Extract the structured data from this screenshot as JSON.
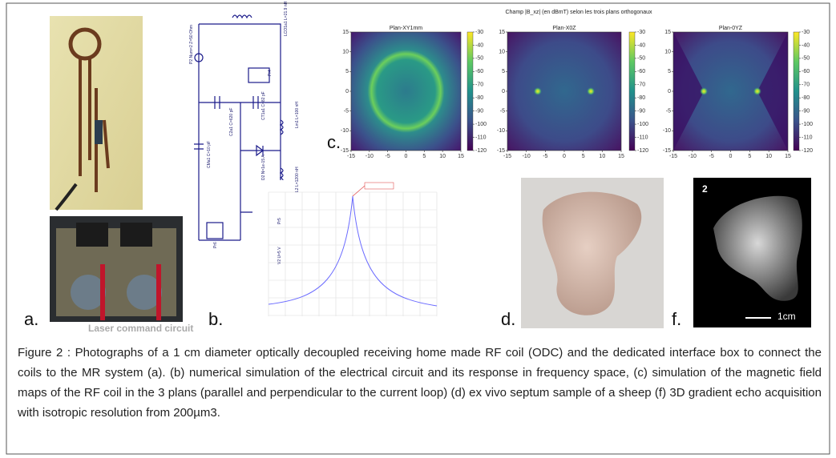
{
  "figure": {
    "panel_labels": {
      "a": "a.",
      "b": "b.",
      "c": "c.",
      "d": "d.",
      "f": "f."
    },
    "photo_a_caption": "Laser command circuit",
    "circuit_labels": [
      "LCO1a1 L=21.9 nH",
      "P2 Num=2 Z=50 Ohm",
      "Pr4",
      "C2a1 C=620 pF",
      "CT1a1 C=82 pF",
      "CMa1 C=10 pF",
      "Lm1 L=100 nH",
      "D2 N=1e-15 A",
      "L2 L=1200 nH",
      "Pr6",
      "Pr5",
      "V2 U=5 V"
    ],
    "field_maps": {
      "title": "Champ |B_xz| (en dBmT) selon les trois plans orthogonaux",
      "plots": [
        "Plan-XY1mm",
        "Plan-X0Z",
        "Plan-0YZ"
      ],
      "axis_ticks": [
        -15,
        -10,
        -5,
        0,
        5,
        10,
        15
      ],
      "colorbar_ticks": [
        -30,
        -40,
        -50,
        -60,
        -70,
        -80,
        -90,
        -100,
        -110,
        -120
      ]
    },
    "mri": {
      "slice": "2",
      "scale_bar": "1cm"
    }
  },
  "caption": "Figure 2 :  Photographs of a 1 cm diameter optically decoupled receiving home made RF coil (ODC) and the dedicated interface box to connect the coils to the MR system (a). (b) numerical simulation of the electrical circuit and its response in frequency space, (c) simulation of the magnetic field maps of the RF coil in the 3 plans (parallel and perpendicular to the current loop) (d) ex vivo septum sample of a sheep (f) 3D gradient echo acquisition with isotropic resolution from 200µm3."
}
